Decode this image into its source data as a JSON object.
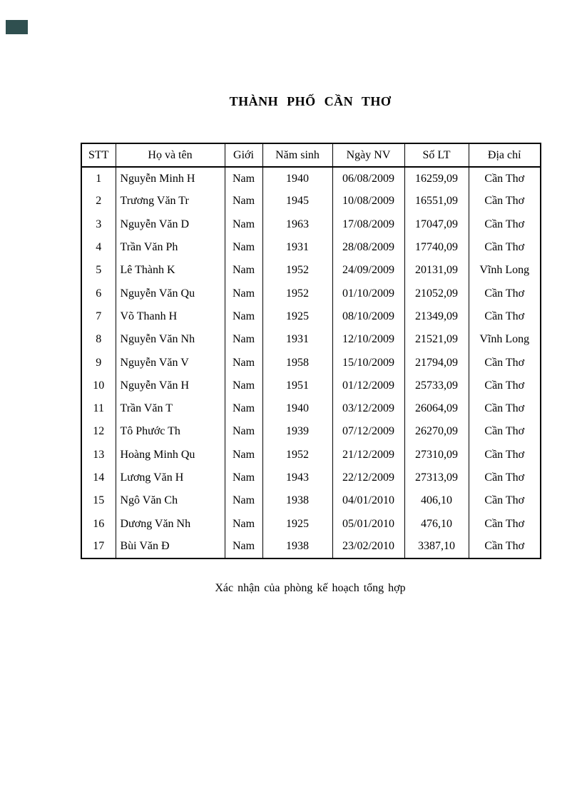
{
  "document": {
    "title": "THÀNH PHỐ CẦN THƠ",
    "confirmation_note": "Xác nhận của phòng kế hoạch tổng hợp"
  },
  "corner_mark": {
    "color": "#2f4f4f"
  },
  "table": {
    "columns": [
      "STT",
      "Họ và tên",
      "Giới",
      "Năm sinh",
      "Ngày NV",
      "Số LT",
      "Địa chỉ"
    ],
    "rows": [
      [
        "1",
        "Nguyễn Minh H",
        "Nam",
        "1940",
        "06/08/2009",
        "16259,09",
        "Cần Thơ"
      ],
      [
        "2",
        "Trương Văn Tr",
        "Nam",
        "1945",
        "10/08/2009",
        "16551,09",
        "Cần Thơ"
      ],
      [
        "3",
        "Nguyễn Văn D",
        "Nam",
        "1963",
        "17/08/2009",
        "17047,09",
        "Cần Thơ"
      ],
      [
        "4",
        "Trần Văn Ph",
        "Nam",
        "1931",
        "28/08/2009",
        "17740,09",
        "Cần Thơ"
      ],
      [
        "5",
        "Lê Thành K",
        "Nam",
        "1952",
        "24/09/2009",
        "20131,09",
        "Vĩnh Long"
      ],
      [
        "6",
        "Nguyễn Văn Qu",
        "Nam",
        "1952",
        "01/10/2009",
        "21052,09",
        "Cần Thơ"
      ],
      [
        "7",
        "Võ Thanh H",
        "Nam",
        "1925",
        "08/10/2009",
        "21349,09",
        "Cần Thơ"
      ],
      [
        "8",
        "Nguyễn Văn Nh",
        "Nam",
        "1931",
        "12/10/2009",
        "21521,09",
        "Vĩnh Long"
      ],
      [
        "9",
        "Nguyễn Văn V",
        "Nam",
        "1958",
        "15/10/2009",
        "21794,09",
        "Cần Thơ"
      ],
      [
        "10",
        "Nguyễn Văn H",
        "Nam",
        "1951",
        "01/12/2009",
        "25733,09",
        "Cần Thơ"
      ],
      [
        "11",
        "Trần Văn T",
        "Nam",
        "1940",
        "03/12/2009",
        "26064,09",
        "Cần Thơ"
      ],
      [
        "12",
        "Tô Phước Th",
        "Nam",
        "1939",
        "07/12/2009",
        "26270,09",
        "Cần Thơ"
      ],
      [
        "13",
        "Hoàng Minh Qu",
        "Nam",
        "1952",
        "21/12/2009",
        "27310,09",
        "Cần Thơ"
      ],
      [
        "14",
        "Lương Văn H",
        "Nam",
        "1943",
        "22/12/2009",
        "27313,09",
        "Cần Thơ"
      ],
      [
        "15",
        "Ngô Văn Ch",
        "Nam",
        "1938",
        "04/01/2010",
        "406,10",
        "Cần Thơ"
      ],
      [
        "16",
        "Dương Văn Nh",
        "Nam",
        "1925",
        "05/01/2010",
        "476,10",
        "Cần Thơ"
      ],
      [
        "17",
        "Bùi Văn Đ",
        "Nam",
        "1938",
        "23/02/2010",
        "3387,10",
        "Cần Thơ"
      ]
    ]
  }
}
